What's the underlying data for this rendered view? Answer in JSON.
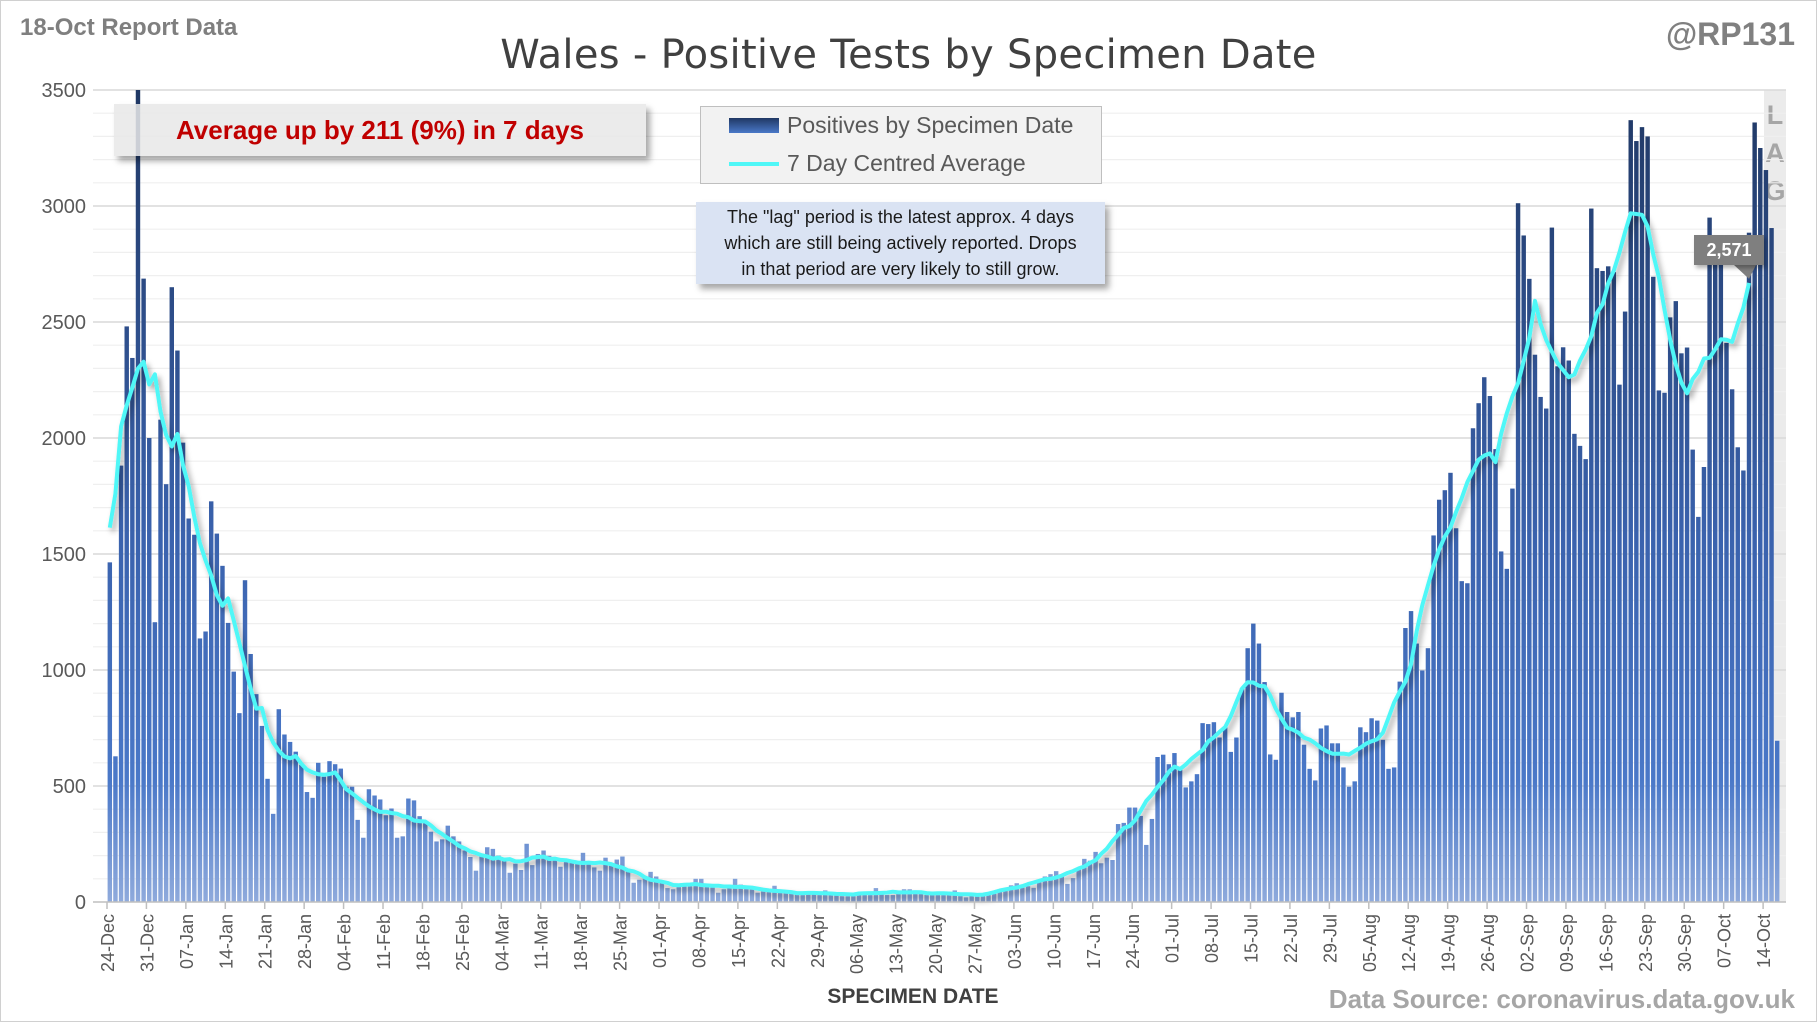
{
  "header": {
    "report_label": "18-Oct Report Data",
    "handle": "@RP131",
    "title": "Wales - Positive Tests by Specimen Date"
  },
  "annotation": {
    "average_change": "Average up by 211 (9%) in 7 days",
    "note_lines": [
      "The \"lag\" period is the latest approx. 4 days",
      "which are still being actively reported.  Drops",
      "in that period are very likely to still grow."
    ],
    "lag_letters": [
      "L",
      "A",
      "G"
    ],
    "last_average_label": "2,571"
  },
  "legend": {
    "bars_label": "Positives by Specimen Date",
    "line_label": "7 Day Centred Average"
  },
  "footer": {
    "xlabel": "SPECIMEN DATE",
    "source": "Data Source: coronavirus.data.gov.uk"
  },
  "colors": {
    "bar_top": "#203864",
    "bar_mid": "#4472c4",
    "bar_bottom": "#8faadc",
    "average_line": "#4ff7f7",
    "headline": "#c00000"
  },
  "chart_data": {
    "type": "bar",
    "title": "Wales - Positive Tests by Specimen Date",
    "xlabel": "SPECIMEN DATE",
    "ylabel": "",
    "ylim": [
      0,
      3500
    ],
    "yticks": [
      0,
      500,
      1000,
      1500,
      2000,
      2500,
      3000,
      3500
    ],
    "grid": true,
    "legend_position": "top-center",
    "tick_interval_days": 7,
    "lag_days": 4,
    "average_window_days": 7,
    "average_trailing_excluded_days": 5,
    "x_tick_labels": [
      "24-Dec",
      "31-Dec",
      "07-Jan",
      "14-Jan",
      "21-Jan",
      "28-Jan",
      "04-Feb",
      "11-Feb",
      "18-Feb",
      "25-Feb",
      "04-Mar",
      "11-Mar",
      "18-Mar",
      "25-Mar",
      "01-Apr",
      "08-Apr",
      "15-Apr",
      "22-Apr",
      "29-Apr",
      "06-May",
      "13-May",
      "20-May",
      "27-May",
      "03-Jun",
      "10-Jun",
      "17-Jun",
      "24-Jun",
      "01-Jul",
      "08-Jul",
      "15-Jul",
      "22-Jul",
      "29-Jul",
      "05-Aug",
      "12-Aug",
      "19-Aug",
      "26-Aug",
      "02-Sep",
      "09-Sep",
      "16-Sep",
      "23-Sep",
      "30-Sep",
      "07-Oct",
      "14-Oct"
    ],
    "series": [
      {
        "name": "Positives by Specimen Date",
        "values": [
          1464,
          628,
          1881,
          2481,
          2345,
          3500,
          2687,
          2000,
          1206,
          2079,
          1801,
          2650,
          2377,
          1980,
          1653,
          1583,
          1136,
          1166,
          1727,
          1588,
          1449,
          1203,
          993,
          814,
          1387,
          1069,
          896,
          759,
          531,
          380,
          831,
          722,
          690,
          648,
          591,
          474,
          449,
          600,
          540,
          607,
          594,
          575,
          497,
          497,
          354,
          277,
          486,
          459,
          442,
          374,
          403,
          277,
          283,
          446,
          438,
          370,
          341,
          303,
          261,
          270,
          329,
          283,
          261,
          222,
          194,
          135,
          197,
          236,
          229,
          200,
          186,
          126,
          165,
          138,
          251,
          159,
          207,
          222,
          199,
          181,
          152,
          178,
          171,
          167,
          212,
          164,
          149,
          135,
          191,
          157,
          183,
          196,
          133,
          83,
          96,
          106,
          130,
          110,
          85,
          60,
          55,
          68,
          68,
          68,
          100,
          100,
          70,
          68,
          40,
          55,
          60,
          100,
          75,
          70,
          55,
          40,
          45,
          50,
          70,
          45,
          45,
          40,
          35,
          30,
          35,
          40,
          45,
          50,
          40,
          30,
          25,
          25,
          30,
          40,
          45,
          30,
          60,
          35,
          30,
          30,
          45,
          55,
          55,
          40,
          35,
          30,
          40,
          40,
          30,
          40,
          50,
          35,
          20,
          30,
          30,
          30,
          33,
          36,
          45,
          50,
          72,
          81,
          62,
          68,
          61,
          85,
          110,
          120,
          133,
          112,
          78,
          103,
          142,
          186,
          178,
          216,
          167,
          191,
          181,
          336,
          341,
          407,
          407,
          371,
          246,
          358,
          625,
          635,
          594,
          642,
          574,
          494,
          520,
          551,
          771,
          767,
          775,
          709,
          753,
          647,
          709,
          921,
          1094,
          1200,
          1114,
          948,
          636,
          613,
          902,
          819,
          796,
          819,
          678,
          574,
          524,
          748,
          761,
          684,
          684,
          580,
          497,
          520,
          753,
          732,
          792,
          782,
          699,
          574,
          580,
          950,
          1181,
          1254,
          1114,
          998,
          1094,
          1580,
          1734,
          1775,
          1850,
          1611,
          1383,
          1374,
          2042,
          2150,
          2262,
          2181,
          1952,
          1511,
          1436,
          1782,
          3012,
          2873,
          2686,
          2359,
          2177,
          2127,
          2907,
          2309,
          2391,
          2334,
          2018,
          1966,
          1909,
          2989,
          2732,
          2720,
          2740,
          2715,
          2230,
          2545,
          3370,
          3280,
          3340,
          3300,
          2695,
          2205,
          2195,
          2520,
          2590,
          2365,
          2390,
          1950,
          1660,
          1875,
          2950,
          2805,
          2770,
          2410,
          2210,
          1960,
          1860,
          2885,
          3360,
          3250,
          3155,
          2905,
          695
        ]
      },
      {
        "name": "7 Day Centred Average",
        "derived_from": "Positives by Specimen Date"
      }
    ]
  }
}
